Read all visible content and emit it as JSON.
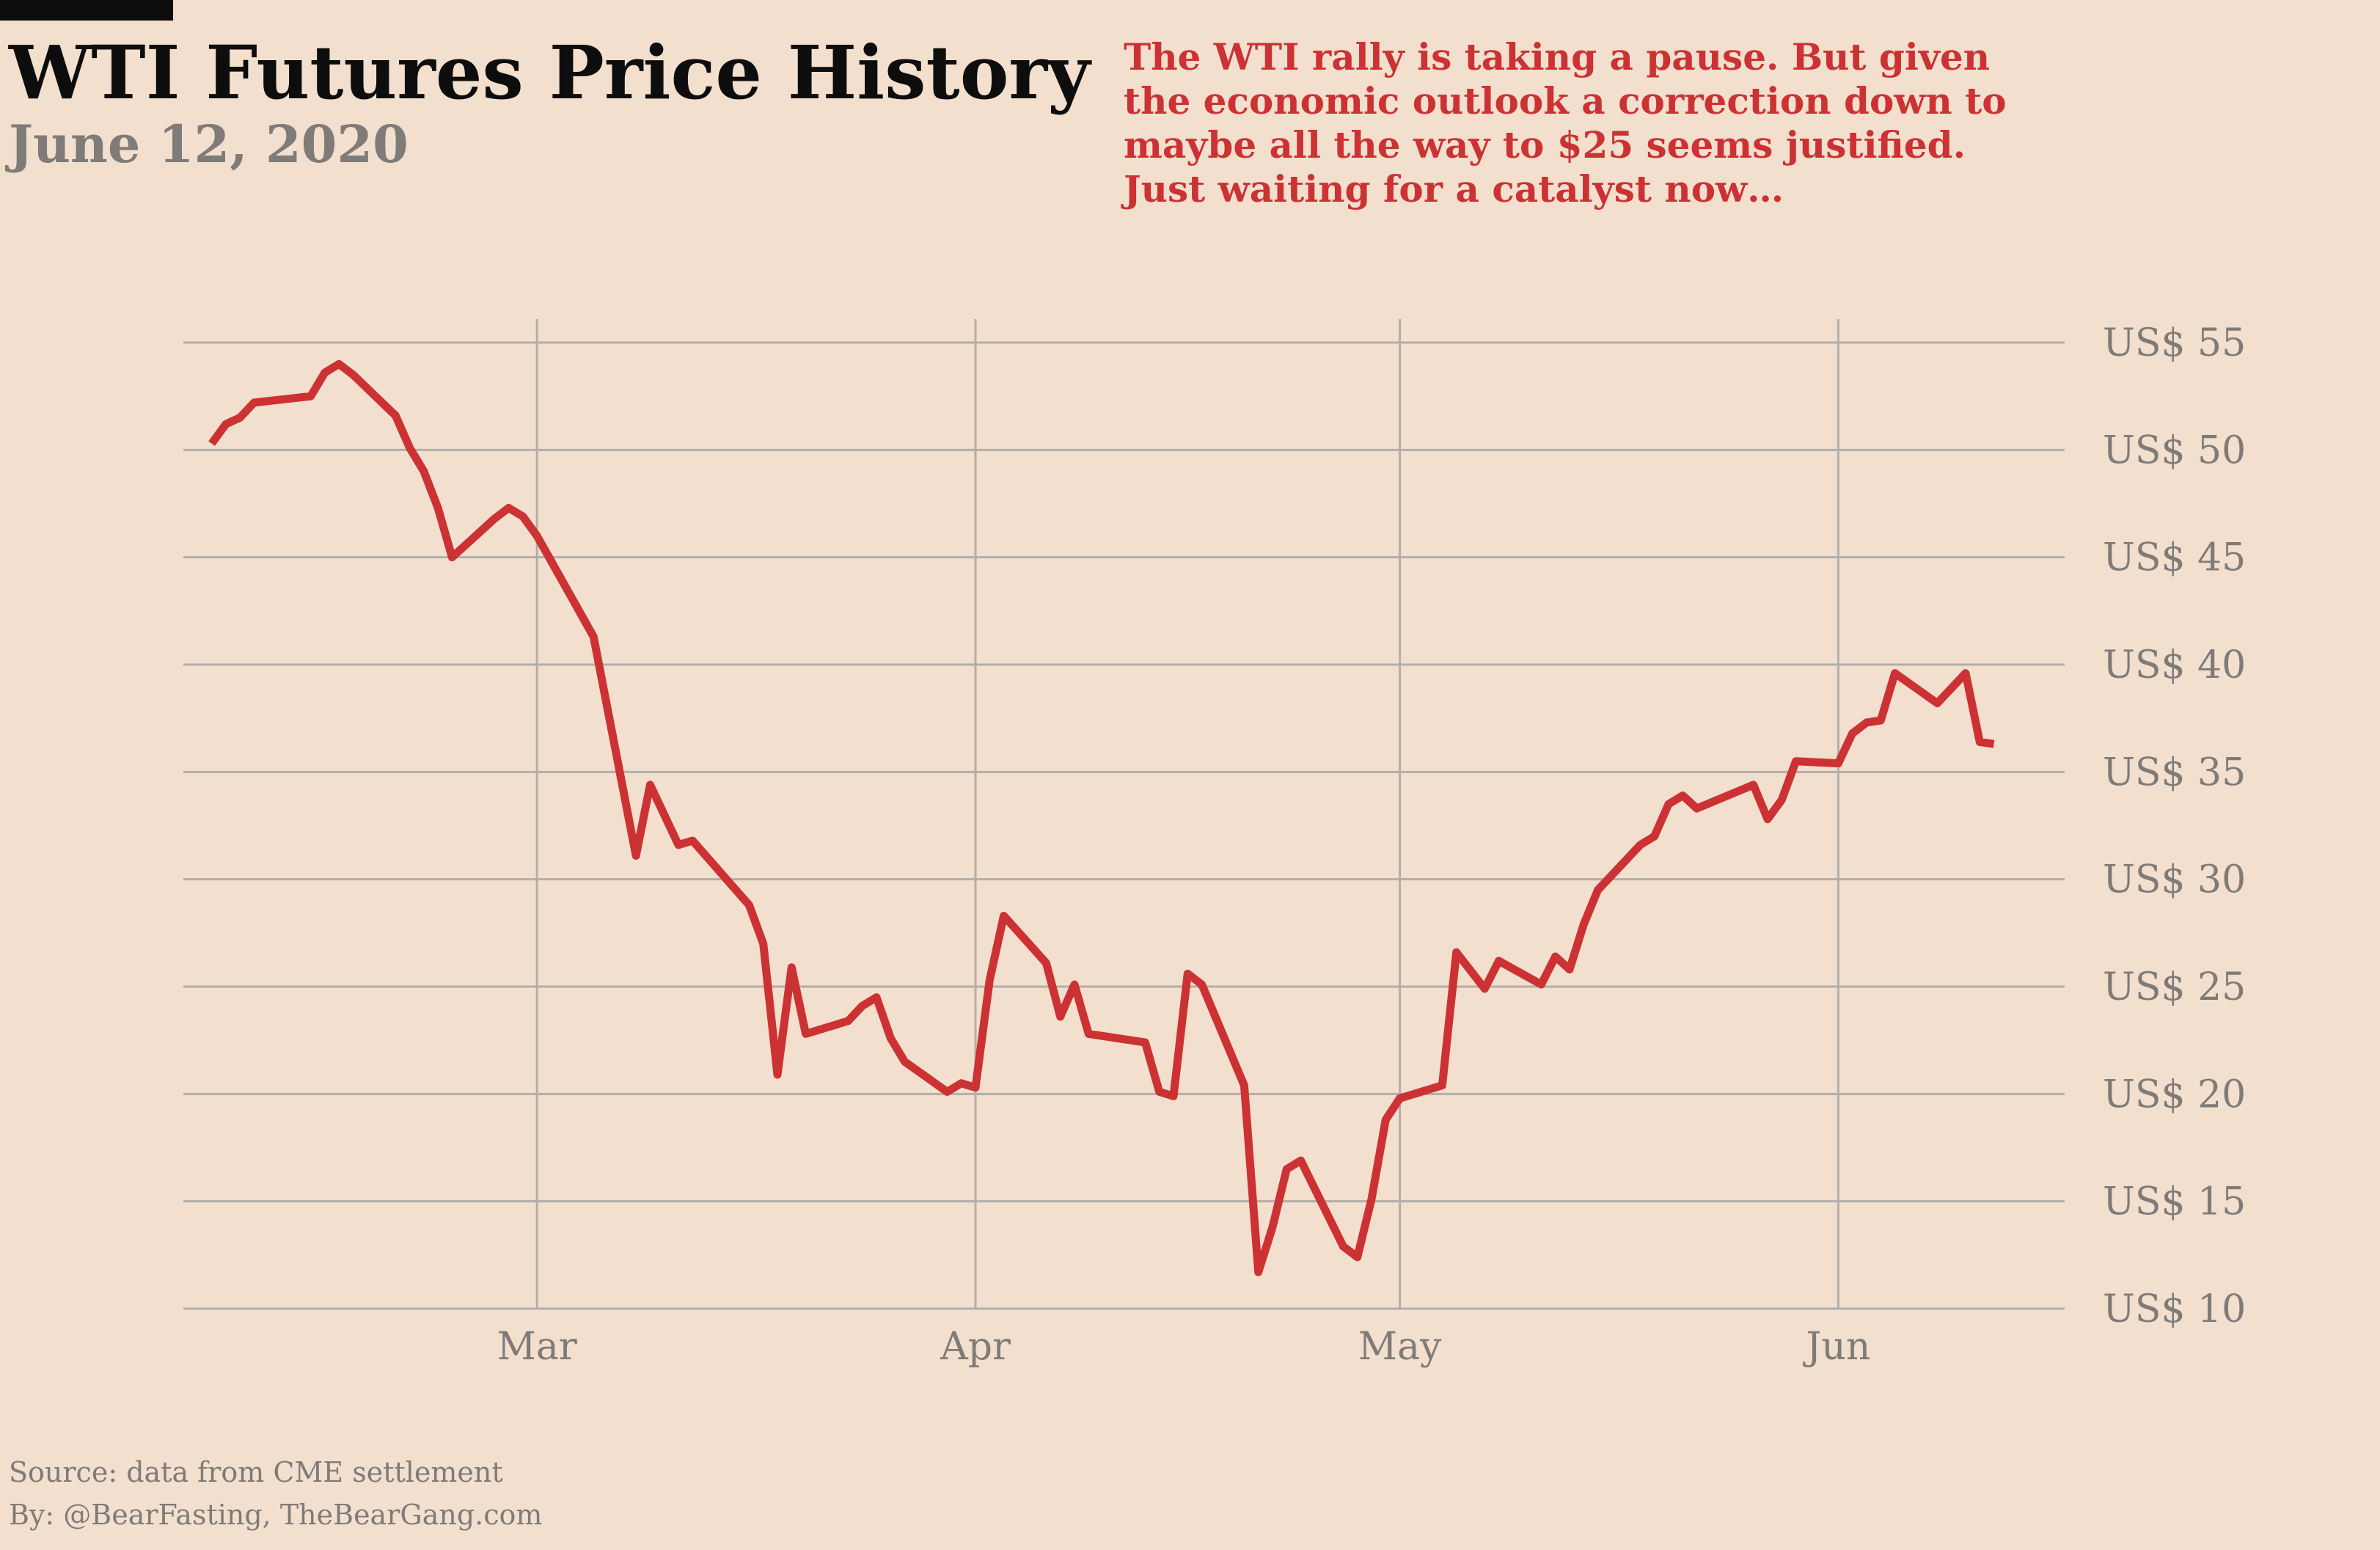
{
  "header": {
    "title": "WTI Futures Price History",
    "subtitle": "June 12, 2020"
  },
  "annotation": "The WTI rally is taking a pause. But given the economic outlook a correction down to maybe all the way to $25 seems justified. Just waiting for a catalyst now…",
  "footer": {
    "source": "Source: data from CME settlement",
    "byline": "By: @BearFasting, TheBearGang.com"
  },
  "colors": {
    "background": "#f2dfce",
    "line": "#cc3233",
    "grid": "#b3aeaa",
    "text_muted": "#7f7b78",
    "title": "#0d0d0d"
  },
  "chart_data": {
    "type": "line",
    "title": "WTI Futures Price History",
    "xlabel": "",
    "ylabel": "",
    "x_ticks": [
      {
        "date": "2020-03-01",
        "label": "Mar"
      },
      {
        "date": "2020-04-01",
        "label": "Apr"
      },
      {
        "date": "2020-05-01",
        "label": "May"
      },
      {
        "date": "2020-06-01",
        "label": "Jun"
      }
    ],
    "y_ticks": [
      {
        "value": 55,
        "label": "US$ 55"
      },
      {
        "value": 50,
        "label": "US$ 50"
      },
      {
        "value": 45,
        "label": "US$ 45"
      },
      {
        "value": 40,
        "label": "US$ 40"
      },
      {
        "value": 35,
        "label": "US$ 35"
      },
      {
        "value": 30,
        "label": "US$ 30"
      },
      {
        "value": 25,
        "label": "US$ 25"
      },
      {
        "value": 20,
        "label": "US$ 20"
      },
      {
        "value": 15,
        "label": "US$ 15"
      },
      {
        "value": 10,
        "label": "US$ 10"
      }
    ],
    "xlim": [
      "2020-02-05",
      "2020-06-17"
    ],
    "ylim": [
      10,
      55
    ],
    "grid": true,
    "y_axis_side": "right",
    "series": [
      {
        "values": [
          {
            "x": "2020-02-07",
            "y": 50.3
          },
          {
            "x": "2020-02-08",
            "y": 51.2
          },
          {
            "x": "2020-02-09",
            "y": 51.5
          },
          {
            "x": "2020-02-10",
            "y": 52.2
          },
          {
            "x": "2020-02-14",
            "y": 52.5
          },
          {
            "x": "2020-02-15",
            "y": 53.6
          },
          {
            "x": "2020-02-16",
            "y": 54.0
          },
          {
            "x": "2020-02-17",
            "y": 53.5
          },
          {
            "x": "2020-02-20",
            "y": 51.6
          },
          {
            "x": "2020-02-21",
            "y": 50.1
          },
          {
            "x": "2020-02-22",
            "y": 49.0
          },
          {
            "x": "2020-02-23",
            "y": 47.3
          },
          {
            "x": "2020-02-24",
            "y": 45.0
          },
          {
            "x": "2020-02-27",
            "y": 46.8
          },
          {
            "x": "2020-02-28",
            "y": 47.3
          },
          {
            "x": "2020-02-29",
            "y": 46.9
          },
          {
            "x": "2020-03-01",
            "y": 46.0
          },
          {
            "x": "2020-03-05",
            "y": 41.3
          },
          {
            "x": "2020-03-08",
            "y": 31.1
          },
          {
            "x": "2020-03-09",
            "y": 34.4
          },
          {
            "x": "2020-03-11",
            "y": 31.6
          },
          {
            "x": "2020-03-12",
            "y": 31.8
          },
          {
            "x": "2020-03-16",
            "y": 28.8
          },
          {
            "x": "2020-03-17",
            "y": 27.0
          },
          {
            "x": "2020-03-18",
            "y": 20.9
          },
          {
            "x": "2020-03-19",
            "y": 25.9
          },
          {
            "x": "2020-03-20",
            "y": 22.8
          },
          {
            "x": "2020-03-23",
            "y": 23.4
          },
          {
            "x": "2020-03-24",
            "y": 24.1
          },
          {
            "x": "2020-03-25",
            "y": 24.5
          },
          {
            "x": "2020-03-26",
            "y": 22.6
          },
          {
            "x": "2020-03-27",
            "y": 21.5
          },
          {
            "x": "2020-03-30",
            "y": 20.1
          },
          {
            "x": "2020-03-31",
            "y": 20.5
          },
          {
            "x": "2020-04-01",
            "y": 20.3
          },
          {
            "x": "2020-04-02",
            "y": 25.3
          },
          {
            "x": "2020-04-03",
            "y": 28.3
          },
          {
            "x": "2020-04-06",
            "y": 26.1
          },
          {
            "x": "2020-04-07",
            "y": 23.6
          },
          {
            "x": "2020-04-08",
            "y": 25.1
          },
          {
            "x": "2020-04-09",
            "y": 22.8
          },
          {
            "x": "2020-04-13",
            "y": 22.4
          },
          {
            "x": "2020-04-14",
            "y": 20.1
          },
          {
            "x": "2020-04-15",
            "y": 19.9
          },
          {
            "x": "2020-04-16",
            "y": 25.6
          },
          {
            "x": "2020-04-17",
            "y": 25.1
          },
          {
            "x": "2020-04-20",
            "y": 20.4
          },
          {
            "x": "2020-04-21",
            "y": 11.7
          },
          {
            "x": "2020-04-22",
            "y": 13.8
          },
          {
            "x": "2020-04-23",
            "y": 16.5
          },
          {
            "x": "2020-04-24",
            "y": 16.9
          },
          {
            "x": "2020-04-27",
            "y": 12.9
          },
          {
            "x": "2020-04-28",
            "y": 12.4
          },
          {
            "x": "2020-04-29",
            "y": 15.1
          },
          {
            "x": "2020-04-30",
            "y": 18.8
          },
          {
            "x": "2020-05-01",
            "y": 19.8
          },
          {
            "x": "2020-05-04",
            "y": 20.4
          },
          {
            "x": "2020-05-05",
            "y": 26.6
          },
          {
            "x": "2020-05-07",
            "y": 24.9
          },
          {
            "x": "2020-05-08",
            "y": 26.2
          },
          {
            "x": "2020-05-11",
            "y": 25.1
          },
          {
            "x": "2020-05-12",
            "y": 26.4
          },
          {
            "x": "2020-05-13",
            "y": 25.8
          },
          {
            "x": "2020-05-14",
            "y": 27.9
          },
          {
            "x": "2020-05-15",
            "y": 29.5
          },
          {
            "x": "2020-05-18",
            "y": 31.6
          },
          {
            "x": "2020-05-19",
            "y": 32.0
          },
          {
            "x": "2020-05-20",
            "y": 33.5
          },
          {
            "x": "2020-05-21",
            "y": 33.9
          },
          {
            "x": "2020-05-22",
            "y": 33.3
          },
          {
            "x": "2020-05-26",
            "y": 34.4
          },
          {
            "x": "2020-05-27",
            "y": 32.8
          },
          {
            "x": "2020-05-28",
            "y": 33.7
          },
          {
            "x": "2020-05-29",
            "y": 35.5
          },
          {
            "x": "2020-06-01",
            "y": 35.4
          },
          {
            "x": "2020-06-02",
            "y": 36.8
          },
          {
            "x": "2020-06-03",
            "y": 37.3
          },
          {
            "x": "2020-06-04",
            "y": 37.4
          },
          {
            "x": "2020-06-05",
            "y": 39.6
          },
          {
            "x": "2020-06-08",
            "y": 38.2
          },
          {
            "x": "2020-06-10",
            "y": 39.6
          },
          {
            "x": "2020-06-11",
            "y": 36.4
          },
          {
            "x": "2020-06-12",
            "y": 36.3
          }
        ]
      }
    ]
  }
}
